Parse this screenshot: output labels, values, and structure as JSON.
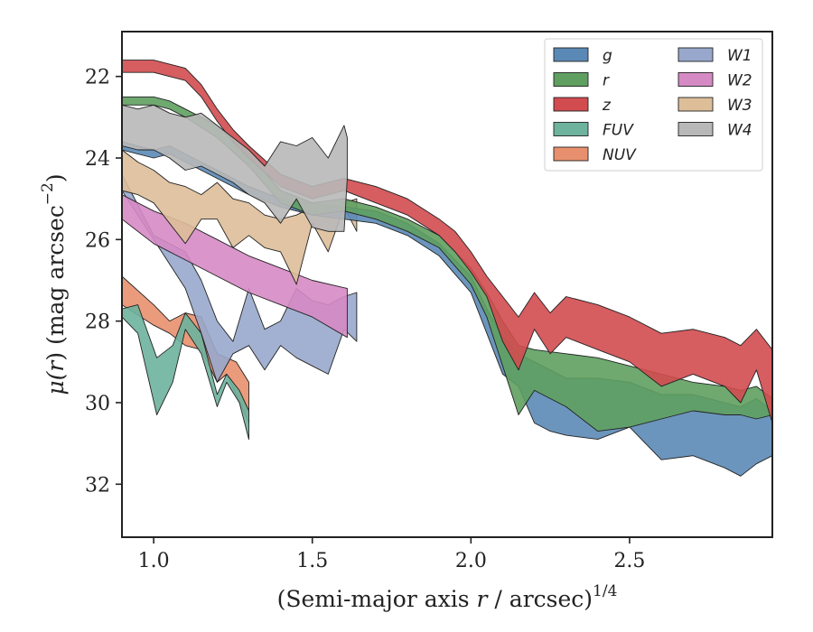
{
  "chart_data": {
    "type": "area",
    "xlabel": "(Semi-major axis r / arcsec)^1/4",
    "ylabel": "μ(r) (mag arcsec^-2)",
    "xlabel_parts": {
      "main": "(Semi-major axis ",
      "var": "r",
      "rest": " / arcsec)",
      "sup": "1/4"
    },
    "ylabel_parts": {
      "mu": "μ(",
      "var": "r",
      "mid": ") (mag arcsec",
      "sup": "−2",
      "end": ")"
    },
    "xlim": [
      0.9,
      2.95
    ],
    "ylim": [
      33.3,
      20.9
    ],
    "y_inverted": true,
    "grid": false,
    "legend_position": "top-right",
    "legend_columns": 2,
    "x_ticks": [
      {
        "v": 1.0,
        "label": "1.0"
      },
      {
        "v": 1.5,
        "label": "1.5"
      },
      {
        "v": 2.0,
        "label": "2.0"
      },
      {
        "v": 2.5,
        "label": "2.5"
      }
    ],
    "y_ticks": [
      {
        "v": 22,
        "label": "22"
      },
      {
        "v": 24,
        "label": "24"
      },
      {
        "v": 26,
        "label": "26"
      },
      {
        "v": 28,
        "label": "28"
      },
      {
        "v": 30,
        "label": "30"
      },
      {
        "v": 32,
        "label": "32"
      }
    ],
    "series": [
      {
        "name": "NUV",
        "color": "#E8906E",
        "x": [
          0.9,
          1.0,
          1.05,
          1.1,
          1.15,
          1.2,
          1.23,
          1.26,
          1.3
        ],
        "y_upper": [
          26.9,
          27.6,
          28.0,
          27.8,
          27.9,
          28.8,
          28.9,
          29.0,
          29.5
        ],
        "y_lower": [
          27.6,
          28.1,
          28.3,
          28.6,
          28.7,
          29.5,
          29.3,
          29.8,
          30.5
        ]
      },
      {
        "name": "FUV",
        "color": "#6DB39D",
        "x": [
          0.9,
          0.95,
          1.01,
          1.06,
          1.1,
          1.15,
          1.2,
          1.23,
          1.27,
          1.3
        ],
        "y_upper": [
          27.7,
          27.6,
          28.9,
          28.6,
          27.8,
          28.3,
          29.8,
          29.3,
          29.7,
          30.2
        ],
        "y_lower": [
          27.9,
          28.3,
          30.3,
          29.5,
          28.2,
          28.8,
          30.1,
          29.5,
          30.0,
          30.9
        ]
      },
      {
        "name": "W1",
        "color": "#98A8CC",
        "x": [
          0.9,
          1.0,
          1.1,
          1.15,
          1.2,
          1.25,
          1.3,
          1.35,
          1.4,
          1.45,
          1.5,
          1.55,
          1.6,
          1.64
        ],
        "y_upper": [
          24.4,
          25.9,
          26.3,
          27.0,
          28.0,
          28.5,
          27.2,
          28.2,
          28.0,
          27.2,
          27.5,
          27.6,
          27.4,
          27.3
        ],
        "y_lower": [
          24.8,
          26.0,
          27.2,
          28.3,
          29.5,
          28.8,
          28.6,
          29.2,
          28.6,
          28.9,
          29.1,
          29.3,
          28.2,
          28.5
        ]
      },
      {
        "name": "W2",
        "color": "#D68AC4",
        "x": [
          0.9,
          1.0,
          1.1,
          1.2,
          1.3,
          1.4,
          1.5,
          1.61
        ],
        "y_upper": [
          24.9,
          25.3,
          25.6,
          26.0,
          26.4,
          26.7,
          27.0,
          27.2
        ],
        "y_lower": [
          25.5,
          26.1,
          26.5,
          26.9,
          27.3,
          27.6,
          27.9,
          28.4
        ]
      },
      {
        "name": "W3",
        "color": "#DDBE99",
        "x": [
          0.9,
          0.95,
          1.0,
          1.05,
          1.1,
          1.15,
          1.2,
          1.25,
          1.3,
          1.35,
          1.4,
          1.45,
          1.5,
          1.55,
          1.6,
          1.64
        ],
        "y_upper": [
          23.8,
          24.1,
          24.3,
          24.6,
          24.7,
          24.9,
          24.6,
          25.0,
          25.1,
          25.4,
          25.5,
          25.4,
          25.2,
          25.3,
          25.1,
          25.0
        ],
        "y_lower": [
          24.8,
          24.9,
          25.1,
          25.6,
          26.1,
          25.5,
          25.5,
          26.2,
          25.9,
          26.2,
          26.3,
          27.1,
          25.6,
          26.3,
          25.2,
          25.8
        ]
      },
      {
        "name": "g",
        "color": "#5B89B5",
        "x": [
          0.9,
          1.0,
          1.05,
          1.1,
          1.2,
          1.3,
          1.4,
          1.5,
          1.6,
          1.7,
          1.8,
          1.9,
          2.0,
          2.05,
          2.1,
          2.15,
          2.2,
          2.25,
          2.3,
          2.4,
          2.5,
          2.6,
          2.7,
          2.8,
          2.85,
          2.9,
          2.95
        ],
        "y_upper": [
          23.6,
          23.8,
          23.7,
          23.9,
          24.3,
          24.7,
          25.0,
          25.1,
          25.2,
          25.3,
          25.6,
          26.1,
          26.9,
          27.7,
          28.4,
          28.8,
          29.0,
          29.2,
          29.4,
          29.4,
          29.5,
          29.8,
          29.8,
          30.0,
          30.1,
          29.9,
          30.2
        ],
        "y_lower": [
          23.8,
          24.0,
          23.9,
          24.1,
          24.5,
          24.9,
          25.2,
          25.4,
          25.5,
          25.6,
          25.9,
          26.4,
          27.3,
          28.3,
          29.3,
          29.6,
          30.5,
          30.7,
          30.8,
          30.9,
          30.6,
          31.4,
          31.3,
          31.6,
          31.8,
          31.5,
          31.3
        ]
      },
      {
        "name": "r",
        "color": "#5FA060",
        "x": [
          0.9,
          1.0,
          1.05,
          1.1,
          1.2,
          1.3,
          1.4,
          1.5,
          1.6,
          1.7,
          1.8,
          1.9,
          2.0,
          2.05,
          2.1,
          2.15,
          2.2,
          2.3,
          2.4,
          2.5,
          2.6,
          2.7,
          2.8,
          2.85,
          2.9,
          2.95
        ],
        "y_upper": [
          22.5,
          22.5,
          22.6,
          22.8,
          23.2,
          23.9,
          24.8,
          25.1,
          25.0,
          25.2,
          25.5,
          25.9,
          26.7,
          27.3,
          28.0,
          28.6,
          28.7,
          28.8,
          28.9,
          29.1,
          29.3,
          29.5,
          29.6,
          29.7,
          29.6,
          29.9
        ],
        "y_lower": [
          22.7,
          22.7,
          22.8,
          23.0,
          23.5,
          24.2,
          25.1,
          25.4,
          25.3,
          25.5,
          25.8,
          26.2,
          27.1,
          27.9,
          29.1,
          30.3,
          29.7,
          30.1,
          30.7,
          30.6,
          30.4,
          30.2,
          30.3,
          30.3,
          30.4,
          30.3
        ]
      },
      {
        "name": "z",
        "color": "#D24B4F",
        "x": [
          0.9,
          1.0,
          1.05,
          1.1,
          1.15,
          1.2,
          1.25,
          1.3,
          1.4,
          1.5,
          1.6,
          1.7,
          1.8,
          1.9,
          1.95,
          2.0,
          2.05,
          2.1,
          2.15,
          2.2,
          2.25,
          2.3,
          2.4,
          2.5,
          2.6,
          2.7,
          2.8,
          2.85,
          2.9,
          2.95
        ],
        "y_upper": [
          21.6,
          21.6,
          21.7,
          21.8,
          22.2,
          22.8,
          23.3,
          23.7,
          24.4,
          24.7,
          24.5,
          24.7,
          25.0,
          25.5,
          25.8,
          26.3,
          26.9,
          27.4,
          27.9,
          27.3,
          27.8,
          27.4,
          27.6,
          27.9,
          28.3,
          28.2,
          28.4,
          28.6,
          28.2,
          28.7
        ],
        "y_lower": [
          21.9,
          21.9,
          22.0,
          22.1,
          22.5,
          23.1,
          23.6,
          24.0,
          24.7,
          25.0,
          24.8,
          25.1,
          25.4,
          25.9,
          26.3,
          26.8,
          27.4,
          28.5,
          29.2,
          28.2,
          28.8,
          28.4,
          28.7,
          29.0,
          29.6,
          29.3,
          29.6,
          30.0,
          29.2,
          30.5
        ]
      },
      {
        "name": "W4",
        "color": "#B8B8B8",
        "x": [
          0.9,
          0.95,
          1.0,
          1.05,
          1.1,
          1.15,
          1.2,
          1.25,
          1.3,
          1.35,
          1.4,
          1.45,
          1.5,
          1.55,
          1.6,
          1.61
        ],
        "y_upper": [
          22.7,
          22.8,
          22.7,
          22.9,
          23.0,
          22.9,
          23.2,
          23.5,
          23.8,
          24.2,
          23.6,
          23.7,
          23.5,
          24.0,
          23.2,
          23.5
        ],
        "y_lower": [
          23.7,
          23.8,
          23.8,
          24.0,
          24.3,
          24.2,
          24.4,
          24.6,
          24.9,
          25.1,
          25.6,
          25.0,
          25.7,
          25.8,
          25.8,
          24.5
        ]
      }
    ],
    "legend": [
      {
        "name": "g",
        "color": "#5B89B5"
      },
      {
        "name": "r",
        "color": "#5FA060"
      },
      {
        "name": "z",
        "color": "#D24B4F"
      },
      {
        "name": "FUV",
        "color": "#6DB39D"
      },
      {
        "name": "NUV",
        "color": "#E8906E"
      },
      {
        "name": "W1",
        "color": "#98A8CC"
      },
      {
        "name": "W2",
        "color": "#D68AC4"
      },
      {
        "name": "W3",
        "color": "#DDBE99"
      },
      {
        "name": "W4",
        "color": "#B8B8B8"
      }
    ]
  }
}
